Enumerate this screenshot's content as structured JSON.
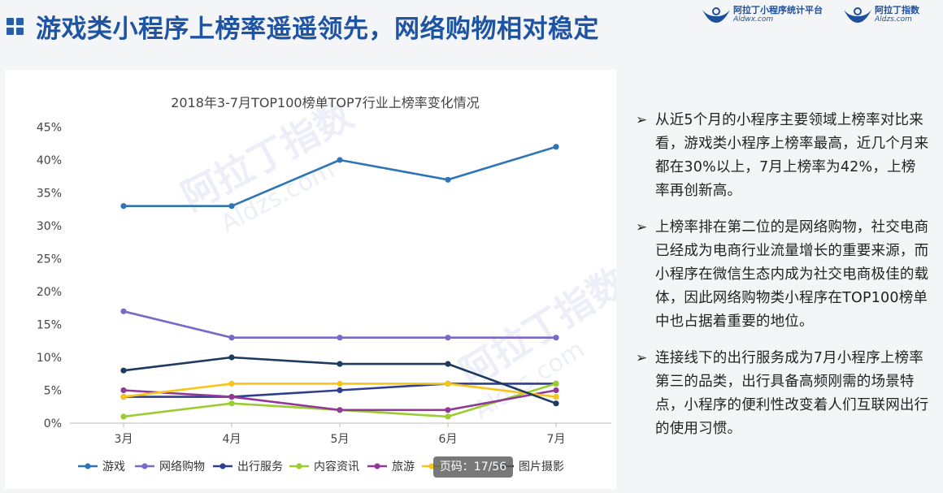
{
  "header": {
    "title": "游戏类小程序上榜率遥遥领先，网络购物相对稳定",
    "logos": [
      {
        "name": "阿拉丁小程序统计平台",
        "url": "Aldwx.com",
        "color": "#1e4f9d"
      },
      {
        "name": "阿拉丁指数",
        "url": "Aldzs.com",
        "color": "#1e4f9d"
      }
    ]
  },
  "watermark": {
    "text": "阿拉丁指数",
    "url": "Aldzs.com"
  },
  "bullets": [
    "从近5个月的小程序主要领域上榜率对比来看，游戏类小程序上榜率最高，近几个月来都在30%以上，7月上榜率为42%，上榜率再创新高。",
    "上榜率排在第二位的是网络购物，社交电商已经成为电商行业流量增长的重要来源，而小程序在微信生态内成为社交电商极佳的载体，因此网络购物类小程序在TOP100榜单中也占据着重要的地位。",
    "连接线下的出行服务成为7月小程序上榜率第三的品类，出行具备高频刚需的场景特点，小程序的便利性改变着人们互联网出行的使用习惯。"
  ],
  "bullet_marker": "➢",
  "page_indicator": "页码：17/56",
  "chart_data": {
    "type": "line",
    "title": "2018年3-7月TOP100榜单TOP7行业上榜率变化情况",
    "categories": [
      "3月",
      "4月",
      "5月",
      "6月",
      "7月"
    ],
    "ylim": [
      0,
      45
    ],
    "yticks": [
      "0%",
      "5%",
      "10%",
      "15%",
      "20%",
      "25%",
      "30%",
      "35%",
      "40%",
      "45%"
    ],
    "grid": false,
    "legend": "bottom",
    "series": [
      {
        "name": "游戏",
        "color": "#2e75b6",
        "values": [
          33,
          33,
          40,
          37,
          42
        ]
      },
      {
        "name": "网络购物",
        "color": "#7b68c8",
        "values": [
          17,
          13,
          13,
          13,
          13
        ]
      },
      {
        "name": "出行服务",
        "color": "#2f3e8f",
        "values": [
          4,
          4,
          5,
          6,
          6
        ]
      },
      {
        "name": "内容资讯",
        "color": "#9acd32",
        "values": [
          1,
          3,
          2,
          1,
          6
        ]
      },
      {
        "name": "旅游",
        "color": "#8e3a96",
        "values": [
          5,
          4,
          2,
          2,
          5
        ]
      },
      {
        "name": "",
        "color": "#f5c518",
        "values": [
          4,
          6,
          6,
          6,
          4
        ]
      },
      {
        "name": "图片摄影",
        "color": "#1d3a5f",
        "values": [
          8,
          10,
          9,
          9,
          3
        ]
      }
    ]
  }
}
